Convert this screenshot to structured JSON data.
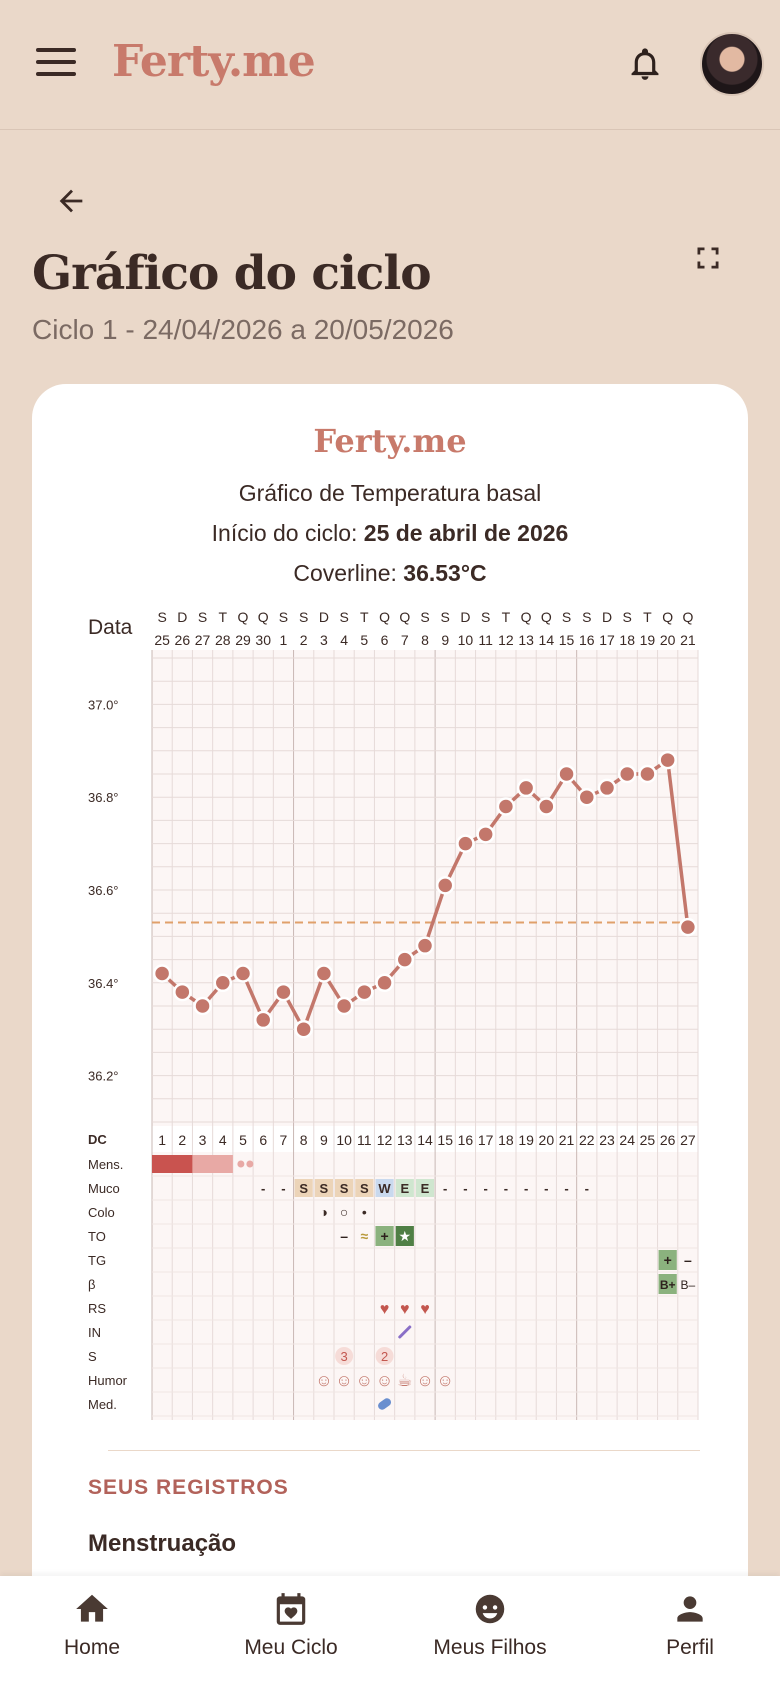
{
  "app": {
    "logo": "Ferty.me"
  },
  "header": {
    "menu_icon": "hamburger-icon",
    "bell_icon": "bell-icon",
    "avatar_icon": "avatar"
  },
  "page": {
    "title": "Gráfico do ciclo",
    "subtitle": "Ciclo 1 - 24/04/2026 a 20/05/2026"
  },
  "card": {
    "logo": "Ferty.me",
    "title": "Gráfico de Temperatura basal",
    "cycle_start_label": "Início do ciclo:",
    "cycle_start_value": "25 de abril de 2026",
    "coverline_label": "Coverline:",
    "coverline_value": "36.53°C"
  },
  "chart_data": {
    "type": "line",
    "date_header_label": "Data",
    "weekdays": [
      "S",
      "D",
      "S",
      "T",
      "Q",
      "Q",
      "S",
      "S",
      "D",
      "S",
      "T",
      "Q",
      "Q",
      "S",
      "S",
      "D",
      "S",
      "T",
      "Q",
      "Q",
      "S",
      "S",
      "D",
      "S",
      "T",
      "Q",
      "Q"
    ],
    "dates": [
      "25",
      "26",
      "27",
      "28",
      "29",
      "30",
      "1",
      "2",
      "3",
      "4",
      "5",
      "6",
      "7",
      "8",
      "9",
      "10",
      "11",
      "12",
      "13",
      "14",
      "15",
      "16",
      "17",
      "18",
      "19",
      "20",
      "21"
    ],
    "cycle_day_label": "DC",
    "cycle_days": [
      "1",
      "2",
      "3",
      "4",
      "5",
      "6",
      "7",
      "8",
      "9",
      "10",
      "11",
      "12",
      "13",
      "14",
      "15",
      "16",
      "17",
      "18",
      "19",
      "20",
      "21",
      "22",
      "23",
      "24",
      "25",
      "26",
      "27"
    ],
    "y_ticks": [
      "37.0°",
      "36.8°",
      "36.6°",
      "36.4°",
      "36.2°"
    ],
    "ylim": [
      36.1,
      37.1
    ],
    "coverline": 36.53,
    "series": [
      {
        "values": [
          36.42,
          36.38,
          36.35,
          36.4,
          36.42,
          36.32,
          36.38,
          36.3,
          36.42,
          36.35,
          36.38,
          36.4,
          36.45,
          36.48,
          36.61,
          36.7,
          36.72,
          36.78,
          36.82,
          36.78,
          36.85,
          36.8,
          36.82,
          36.85,
          36.85,
          36.88,
          36.52
        ]
      }
    ],
    "rows": [
      {
        "label": "Mens."
      },
      {
        "label": "Muco"
      },
      {
        "label": "Colo"
      },
      {
        "label": "TO"
      },
      {
        "label": "TG"
      },
      {
        "label": "β"
      },
      {
        "label": "RS"
      },
      {
        "label": "IN"
      },
      {
        "label": "S"
      },
      {
        "label": "Humor"
      },
      {
        "label": "Med."
      }
    ],
    "mucus": [
      "",
      "",
      "",
      "",
      "",
      "-",
      "-",
      "S",
      "S",
      "S",
      "S",
      "W",
      "E",
      "E",
      "-",
      "-",
      "-",
      "-",
      "-",
      "-",
      "-",
      "-",
      "",
      "",
      "",
      "",
      ""
    ],
    "cervix": [
      "",
      "",
      "",
      "",
      "",
      "",
      "",
      "",
      "◑",
      "○",
      "•",
      "",
      "",
      "",
      "",
      "",
      "",
      "",
      "",
      "",
      "",
      "",
      "",
      "",
      "",
      "",
      ""
    ],
    "ovulation_test": [
      "",
      "",
      "",
      "",
      "",
      "",
      "",
      "",
      "",
      "–",
      "≈",
      "+",
      "★",
      "",
      "",
      "",
      "",
      "",
      "",
      "",
      "",
      "",
      "",
      "",
      "",
      "",
      ""
    ],
    "pregnancy_test": [
      "",
      "",
      "",
      "",
      "",
      "",
      "",
      "",
      "",
      "",
      "",
      "",
      "",
      "",
      "",
      "",
      "",
      "",
      "",
      "",
      "",
      "",
      "",
      "",
      "",
      "+",
      "–"
    ],
    "beta": [
      "",
      "",
      "",
      "",
      "",
      "",
      "",
      "",
      "",
      "",
      "",
      "",
      "",
      "",
      "",
      "",
      "",
      "",
      "",
      "",
      "",
      "",
      "",
      "",
      "",
      "B+",
      "B–"
    ],
    "intercourse": [
      "",
      "",
      "",
      "",
      "",
      "",
      "",
      "",
      "",
      "",
      "",
      "♥",
      "♥",
      "♥",
      "",
      "",
      "",
      "",
      "",
      "",
      "",
      "",
      "",
      "",
      "",
      "",
      ""
    ],
    "symptoms": [
      "",
      "",
      "",
      "",
      "",
      "",
      "",
      "",
      "",
      "3",
      "",
      "2",
      "",
      "",
      "",
      "",
      "",
      "",
      "",
      "",
      "",
      "",
      "",
      "",
      "",
      "",
      ""
    ],
    "mood": [
      "",
      "",
      "",
      "",
      "",
      "",
      "",
      "",
      "☺",
      "☺",
      "☺",
      "☺",
      "☕",
      "☺",
      "☺",
      "",
      "",
      "",
      "",
      "",
      "",
      "",
      "",
      "",
      "",
      "",
      ""
    ]
  },
  "records": {
    "section_title": "SEUS REGISTROS",
    "first_item": "Menstruação"
  },
  "nav": {
    "home": "Home",
    "cycle": "Meu Ciclo",
    "children": "Meus Filhos",
    "profile": "Perfil"
  },
  "colors": {
    "background": "#ead8c9",
    "brand": "#c87a6b",
    "line": "#c3776b",
    "coverline": "#e0a06a",
    "period_heavy": "#c9534f",
    "period_light": "#e8a9a5"
  }
}
